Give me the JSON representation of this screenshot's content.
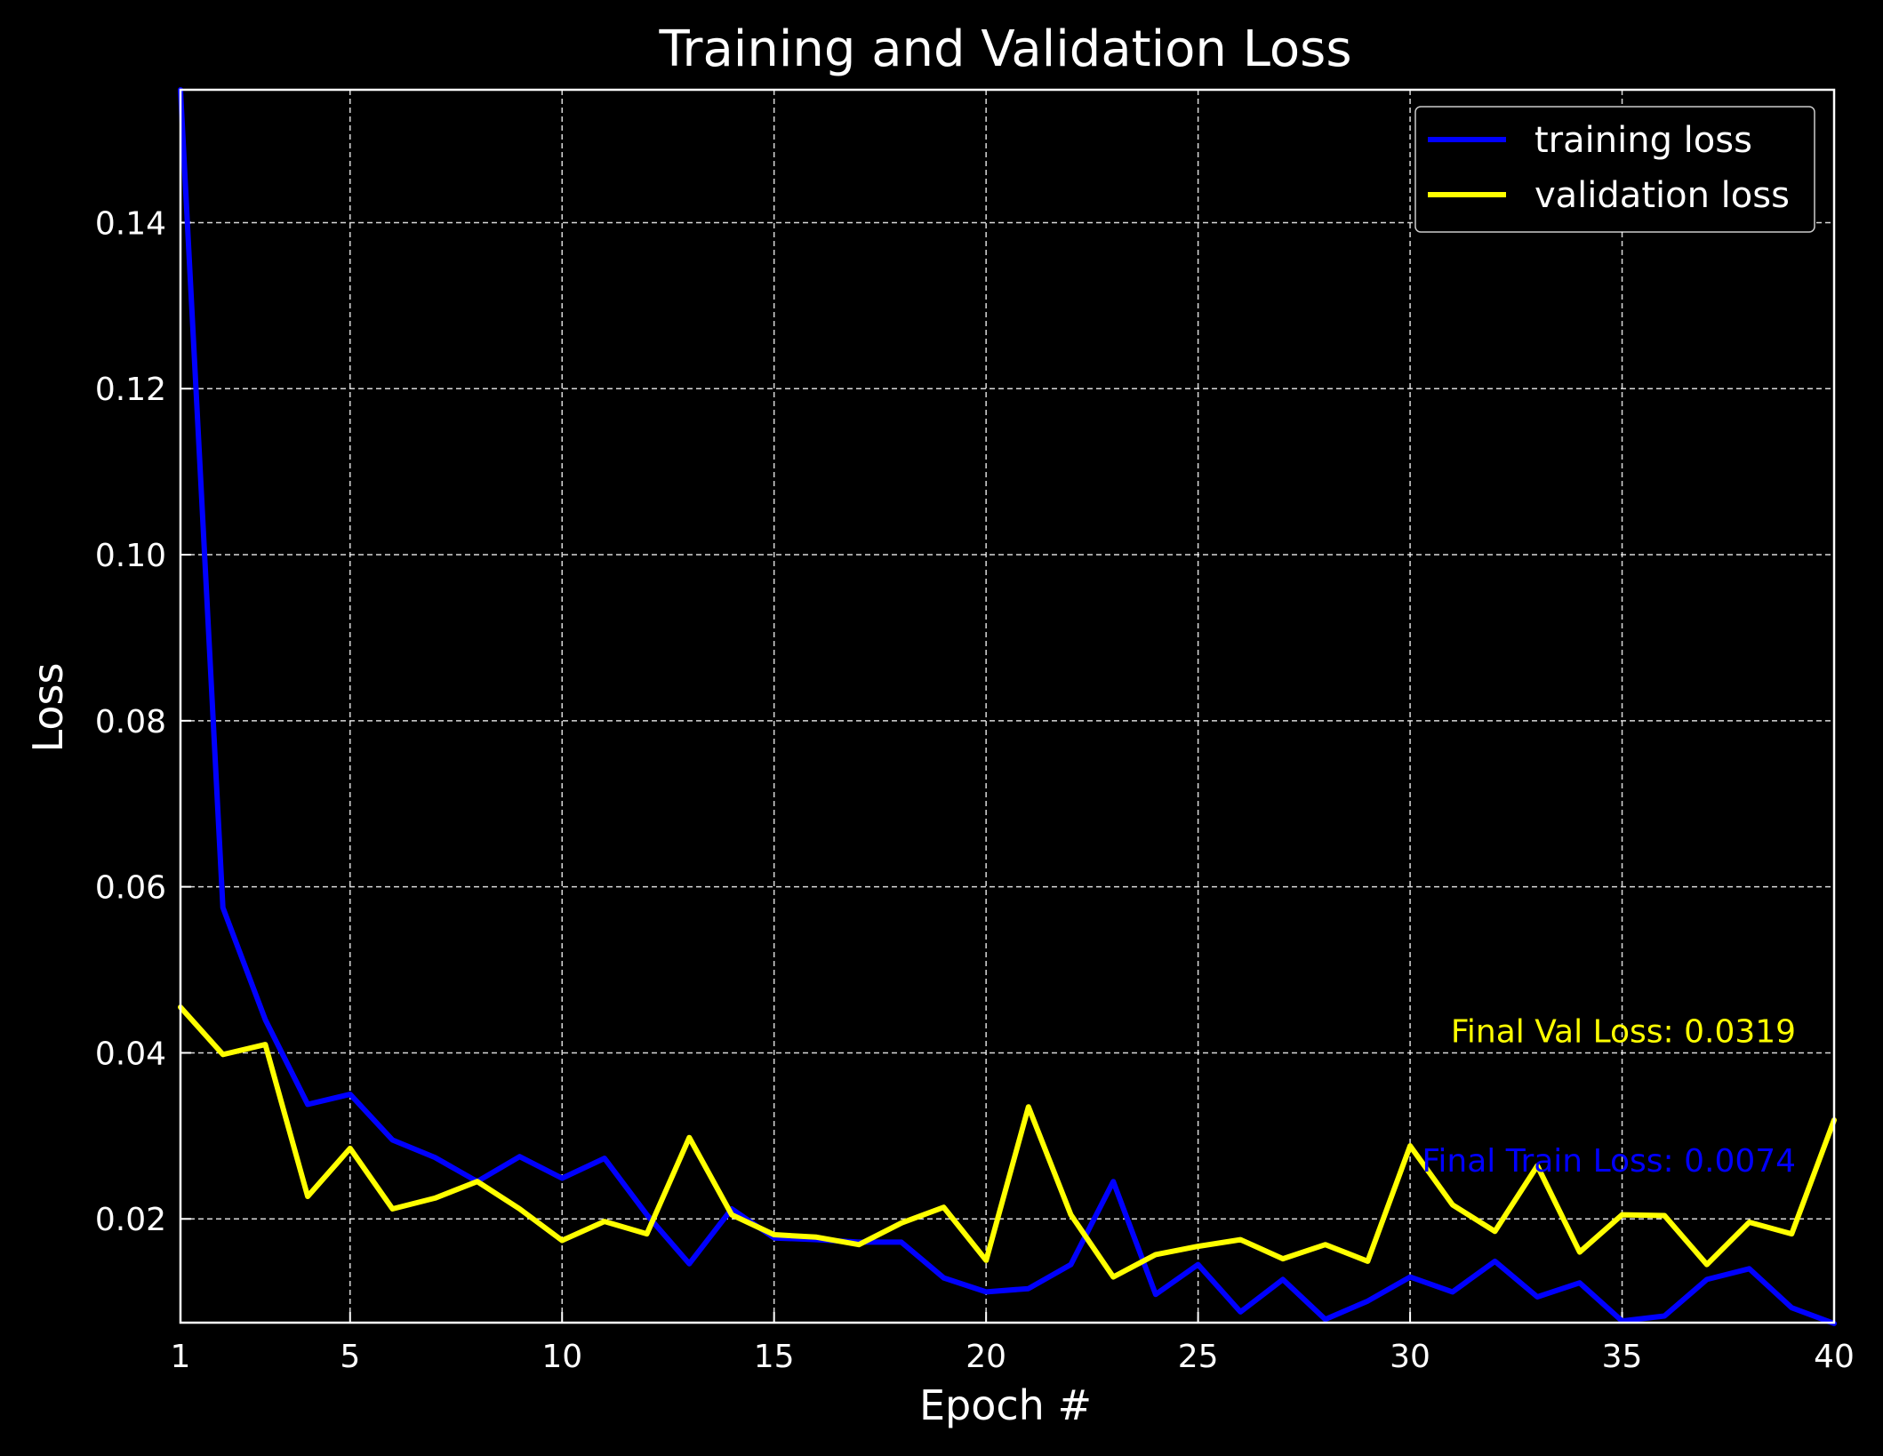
{
  "chart_data": {
    "type": "line",
    "title": "Training and Validation Loss",
    "xlabel": "Epoch #",
    "ylabel": "Loss",
    "xlim": [
      1,
      40
    ],
    "ylim": [
      0.0075,
      0.156
    ],
    "xticks": [
      1,
      5,
      10,
      15,
      20,
      25,
      30,
      35,
      40
    ],
    "xtick_labels": [
      "1",
      "5",
      "10",
      "15",
      "20",
      "25",
      "30",
      "35",
      "40"
    ],
    "yticks": [
      0.02,
      0.04,
      0.06,
      0.08,
      0.1,
      0.12,
      0.14
    ],
    "ytick_labels": [
      "0.02",
      "0.04",
      "0.06",
      "0.08",
      "0.10",
      "0.12",
      "0.14"
    ],
    "grid": true,
    "legend_position": "top-right",
    "background": "#000000",
    "x": [
      1,
      2,
      3,
      4,
      5,
      6,
      7,
      8,
      9,
      10,
      11,
      12,
      13,
      14,
      15,
      16,
      17,
      18,
      19,
      20,
      21,
      22,
      23,
      24,
      25,
      26,
      27,
      28,
      29,
      30,
      31,
      32,
      33,
      34,
      35,
      36,
      37,
      38,
      39,
      40
    ],
    "series": [
      {
        "name": "training loss",
        "color": "#0000ff",
        "values": [
          0.156,
          0.0575,
          0.044,
          0.0338,
          0.035,
          0.0295,
          0.0274,
          0.0245,
          0.0275,
          0.0249,
          0.0273,
          0.0205,
          0.0146,
          0.0212,
          0.0177,
          0.0175,
          0.0172,
          0.0172,
          0.0129,
          0.0112,
          0.0116,
          0.0145,
          0.0245,
          0.0109,
          0.0145,
          0.0088,
          0.0127,
          0.0079,
          0.0101,
          0.013,
          0.0112,
          0.0149,
          0.0106,
          0.0123,
          0.0077,
          0.0083,
          0.0127,
          0.014,
          0.0093,
          0.0074
        ]
      },
      {
        "name": "validation loss",
        "color": "#ffff00",
        "values": [
          0.0455,
          0.0398,
          0.041,
          0.0227,
          0.0285,
          0.0212,
          0.0225,
          0.0245,
          0.0212,
          0.0174,
          0.0197,
          0.0182,
          0.0298,
          0.0205,
          0.0181,
          0.0178,
          0.0169,
          0.0195,
          0.0214,
          0.015,
          0.0335,
          0.0205,
          0.013,
          0.0157,
          0.0167,
          0.0175,
          0.0152,
          0.0169,
          0.0149,
          0.0288,
          0.0217,
          0.0185,
          0.0264,
          0.016,
          0.0205,
          0.0204,
          0.0145,
          0.0196,
          0.0182,
          0.0319
        ]
      }
    ],
    "annotations": [
      {
        "text": "Final Val Loss: 0.0319",
        "color": "#ffff00",
        "x": 39.1,
        "y": 0.0413
      },
      {
        "text": "Final Train Loss: 0.0074",
        "color": "#0000ff",
        "x": 39.1,
        "y": 0.0257
      }
    ]
  }
}
